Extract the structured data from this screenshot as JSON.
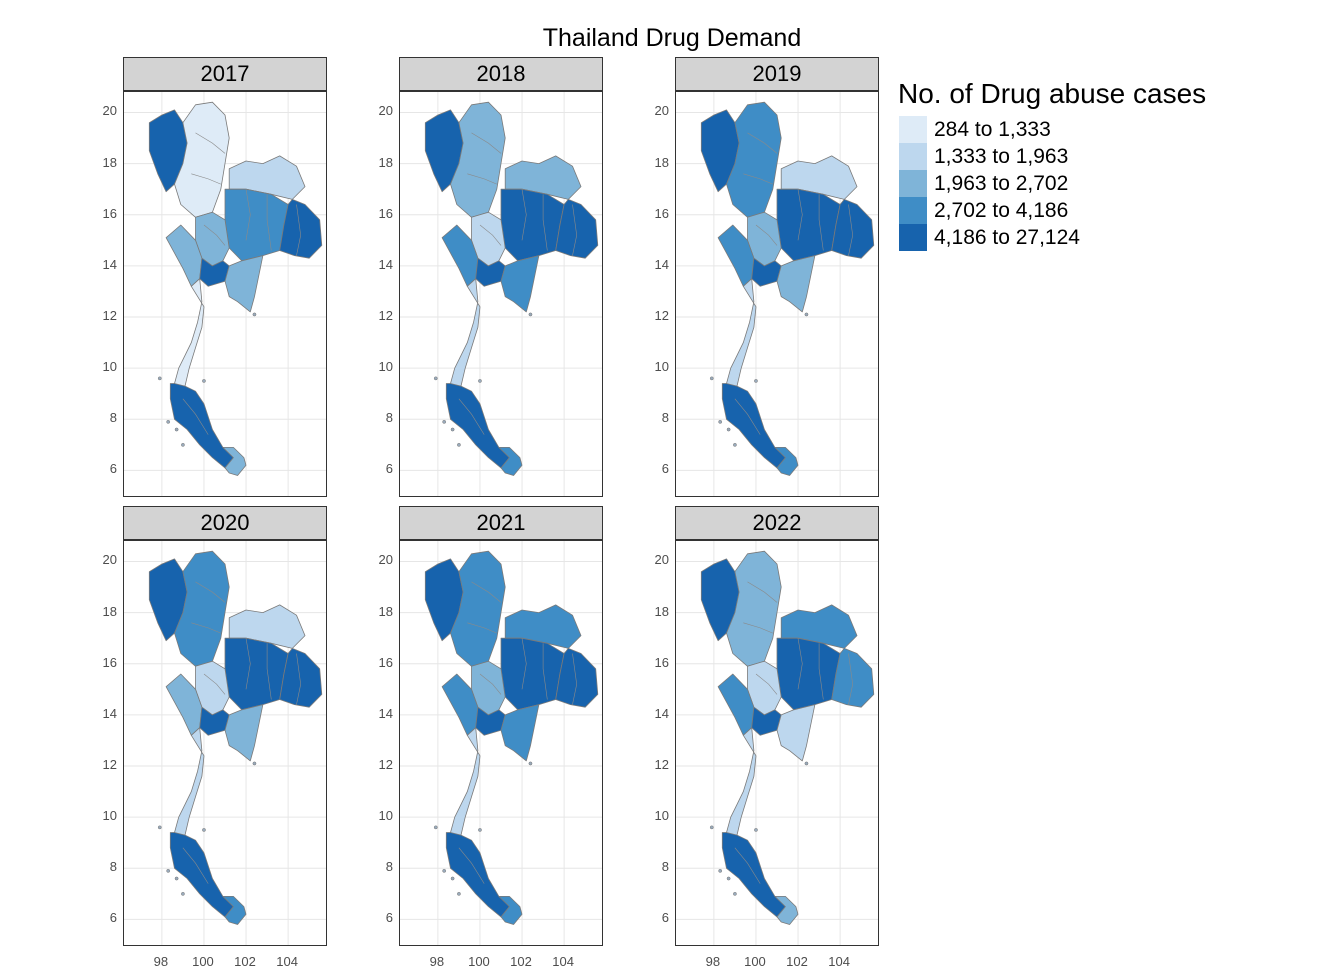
{
  "title": "Thailand Drug Demand",
  "legend": {
    "title": "No. of Drug abuse cases",
    "items": [
      {
        "label": "284 to 1,333",
        "color": "#deebf7"
      },
      {
        "label": "1,333 to 1,963",
        "color": "#bdd7ee"
      },
      {
        "label": "1,963 to 2,702",
        "color": "#7fb4d8"
      },
      {
        "label": "2,702 to 4,186",
        "color": "#3f8dc6"
      },
      {
        "label": "4,186 to 27,124",
        "color": "#1763ad"
      }
    ]
  },
  "axes": {
    "x_ticks": [
      "98",
      "100",
      "102",
      "104"
    ],
    "y_ticks": [
      "20",
      "18",
      "16",
      "14",
      "12",
      "10",
      "8",
      "6"
    ]
  },
  "panels": [
    {
      "year": "2017",
      "regions": {
        "north_west": 4,
        "north_core": 0,
        "north_east_upper": 1,
        "north_east_core": 3,
        "north_east_east": 4,
        "central": 2,
        "bangkok": 4,
        "west": 2,
        "east": 2,
        "peninsula_upper": 0,
        "south": 4,
        "south_tip": 2
      }
    },
    {
      "year": "2018",
      "regions": {
        "north_west": 4,
        "north_core": 2,
        "north_east_upper": 2,
        "north_east_core": 4,
        "north_east_east": 4,
        "central": 1,
        "bangkok": 4,
        "west": 3,
        "east": 3,
        "peninsula_upper": 1,
        "south": 4,
        "south_tip": 3
      }
    },
    {
      "year": "2019",
      "regions": {
        "north_west": 4,
        "north_core": 3,
        "north_east_upper": 1,
        "north_east_core": 4,
        "north_east_east": 4,
        "central": 2,
        "bangkok": 4,
        "west": 3,
        "east": 2,
        "peninsula_upper": 1,
        "south": 4,
        "south_tip": 3
      }
    },
    {
      "year": "2020",
      "regions": {
        "north_west": 4,
        "north_core": 3,
        "north_east_upper": 1,
        "north_east_core": 4,
        "north_east_east": 4,
        "central": 1,
        "bangkok": 4,
        "west": 2,
        "east": 2,
        "peninsula_upper": 1,
        "south": 4,
        "south_tip": 3
      }
    },
    {
      "year": "2021",
      "regions": {
        "north_west": 4,
        "north_core": 3,
        "north_east_upper": 3,
        "north_east_core": 4,
        "north_east_east": 4,
        "central": 2,
        "bangkok": 4,
        "west": 3,
        "east": 3,
        "peninsula_upper": 1,
        "south": 4,
        "south_tip": 3
      }
    },
    {
      "year": "2022",
      "regions": {
        "north_west": 4,
        "north_core": 2,
        "north_east_upper": 3,
        "north_east_core": 4,
        "north_east_east": 3,
        "central": 1,
        "bangkok": 4,
        "west": 3,
        "east": 1,
        "peninsula_upper": 1,
        "south": 4,
        "south_tip": 2
      }
    }
  ]
}
